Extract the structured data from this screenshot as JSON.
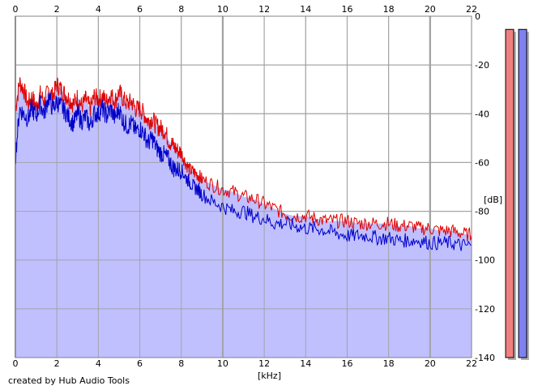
{
  "chart_data": {
    "type": "area",
    "xlabel": "[kHz]",
    "ylabel": "[dB]",
    "xlim": [
      0,
      22
    ],
    "ylim": [
      -140,
      0
    ],
    "x_ticks": [
      0,
      2,
      4,
      6,
      8,
      10,
      12,
      14,
      16,
      18,
      20,
      22
    ],
    "y_ticks": [
      0,
      -20,
      -40,
      -60,
      -80,
      -100,
      -120,
      -140
    ],
    "grid": true,
    "colors": {
      "fill": "#c0c0ff",
      "red_series": "#e00000",
      "blue_series": "#0000c8",
      "grid": "#a0a0a0",
      "meter_red": "#f08080",
      "meter_blue": "#8080f0"
    },
    "series": [
      {
        "color": "#e00000",
        "x": [
          0,
          0.2,
          0.4,
          0.6,
          0.8,
          1.0,
          1.2,
          1.4,
          1.6,
          1.8,
          2.0,
          2.2,
          2.4,
          2.6,
          2.8,
          3.0,
          3.2,
          3.4,
          3.6,
          3.8,
          4.0,
          4.2,
          4.4,
          4.6,
          4.8,
          5.0,
          5.2,
          5.4,
          5.6,
          5.8,
          6.0,
          6.2,
          6.4,
          6.6,
          6.8,
          7.0,
          7.2,
          7.4,
          7.6,
          7.8,
          8.0,
          8.2,
          8.4,
          8.6,
          8.8,
          9.0,
          9.5,
          10.0,
          10.5,
          11.0,
          11.5,
          12.0,
          12.5,
          13.0,
          13.5,
          14.0,
          14.5,
          15.0,
          15.5,
          16.0,
          16.5,
          17.0,
          17.5,
          18.0,
          18.5,
          19.0,
          19.5,
          20.0,
          20.5,
          21.0,
          21.5,
          22.0
        ],
        "y": [
          -38,
          -27,
          -30,
          -36,
          -33,
          -37,
          -32,
          -35,
          -30,
          -33,
          -28,
          -30,
          -32,
          -34,
          -36,
          -33,
          -37,
          -34,
          -38,
          -33,
          -34,
          -33,
          -35,
          -32,
          -35,
          -31,
          -34,
          -36,
          -35,
          -38,
          -38,
          -40,
          -43,
          -42,
          -45,
          -46,
          -47,
          -51,
          -53,
          -55,
          -56,
          -60,
          -63,
          -64,
          -65,
          -67,
          -69,
          -71,
          -72,
          -74,
          -75,
          -77,
          -79,
          -81,
          -82,
          -82,
          -83,
          -84,
          -84,
          -84,
          -85,
          -85,
          -85,
          -85,
          -86,
          -86,
          -87,
          -87,
          -88,
          -88,
          -89,
          -90
        ]
      },
      {
        "color": "#0000c8",
        "x": [
          0,
          0.2,
          0.4,
          0.6,
          0.8,
          1.0,
          1.2,
          1.4,
          1.6,
          1.8,
          2.0,
          2.2,
          2.4,
          2.6,
          2.8,
          3.0,
          3.2,
          3.4,
          3.6,
          3.8,
          4.0,
          4.2,
          4.4,
          4.6,
          4.8,
          5.0,
          5.2,
          5.4,
          5.6,
          5.8,
          6.0,
          6.2,
          6.4,
          6.6,
          6.8,
          7.0,
          7.2,
          7.4,
          7.6,
          7.8,
          8.0,
          8.2,
          8.4,
          8.6,
          8.8,
          9.0,
          9.5,
          10.0,
          10.5,
          11.0,
          11.5,
          12.0,
          12.5,
          13.0,
          13.5,
          14.0,
          14.5,
          15.0,
          15.5,
          16.0,
          16.5,
          17.0,
          17.5,
          18.0,
          18.5,
          19.0,
          19.5,
          20.0,
          20.5,
          21.0,
          21.5,
          22.0
        ],
        "y": [
          -58,
          -38,
          -40,
          -42,
          -38,
          -41,
          -36,
          -40,
          -33,
          -38,
          -35,
          -37,
          -39,
          -42,
          -44,
          -40,
          -43,
          -41,
          -45,
          -40,
          -40,
          -38,
          -41,
          -38,
          -42,
          -38,
          -43,
          -45,
          -44,
          -47,
          -46,
          -48,
          -52,
          -50,
          -54,
          -56,
          -57,
          -59,
          -62,
          -63,
          -63,
          -66,
          -68,
          -70,
          -71,
          -73,
          -76,
          -78,
          -80,
          -80,
          -82,
          -83,
          -85,
          -85,
          -86,
          -87,
          -87,
          -88,
          -89,
          -90,
          -90,
          -90,
          -91,
          -91,
          -92,
          -92,
          -92,
          -93,
          -93,
          -93,
          -94,
          -94
        ]
      }
    ],
    "meters": [
      {
        "color": "#f08080",
        "level": 0.98
      },
      {
        "color": "#8080f0",
        "level": 0.98
      }
    ]
  },
  "footer": {
    "credit": "created by Hub Audio Tools"
  }
}
